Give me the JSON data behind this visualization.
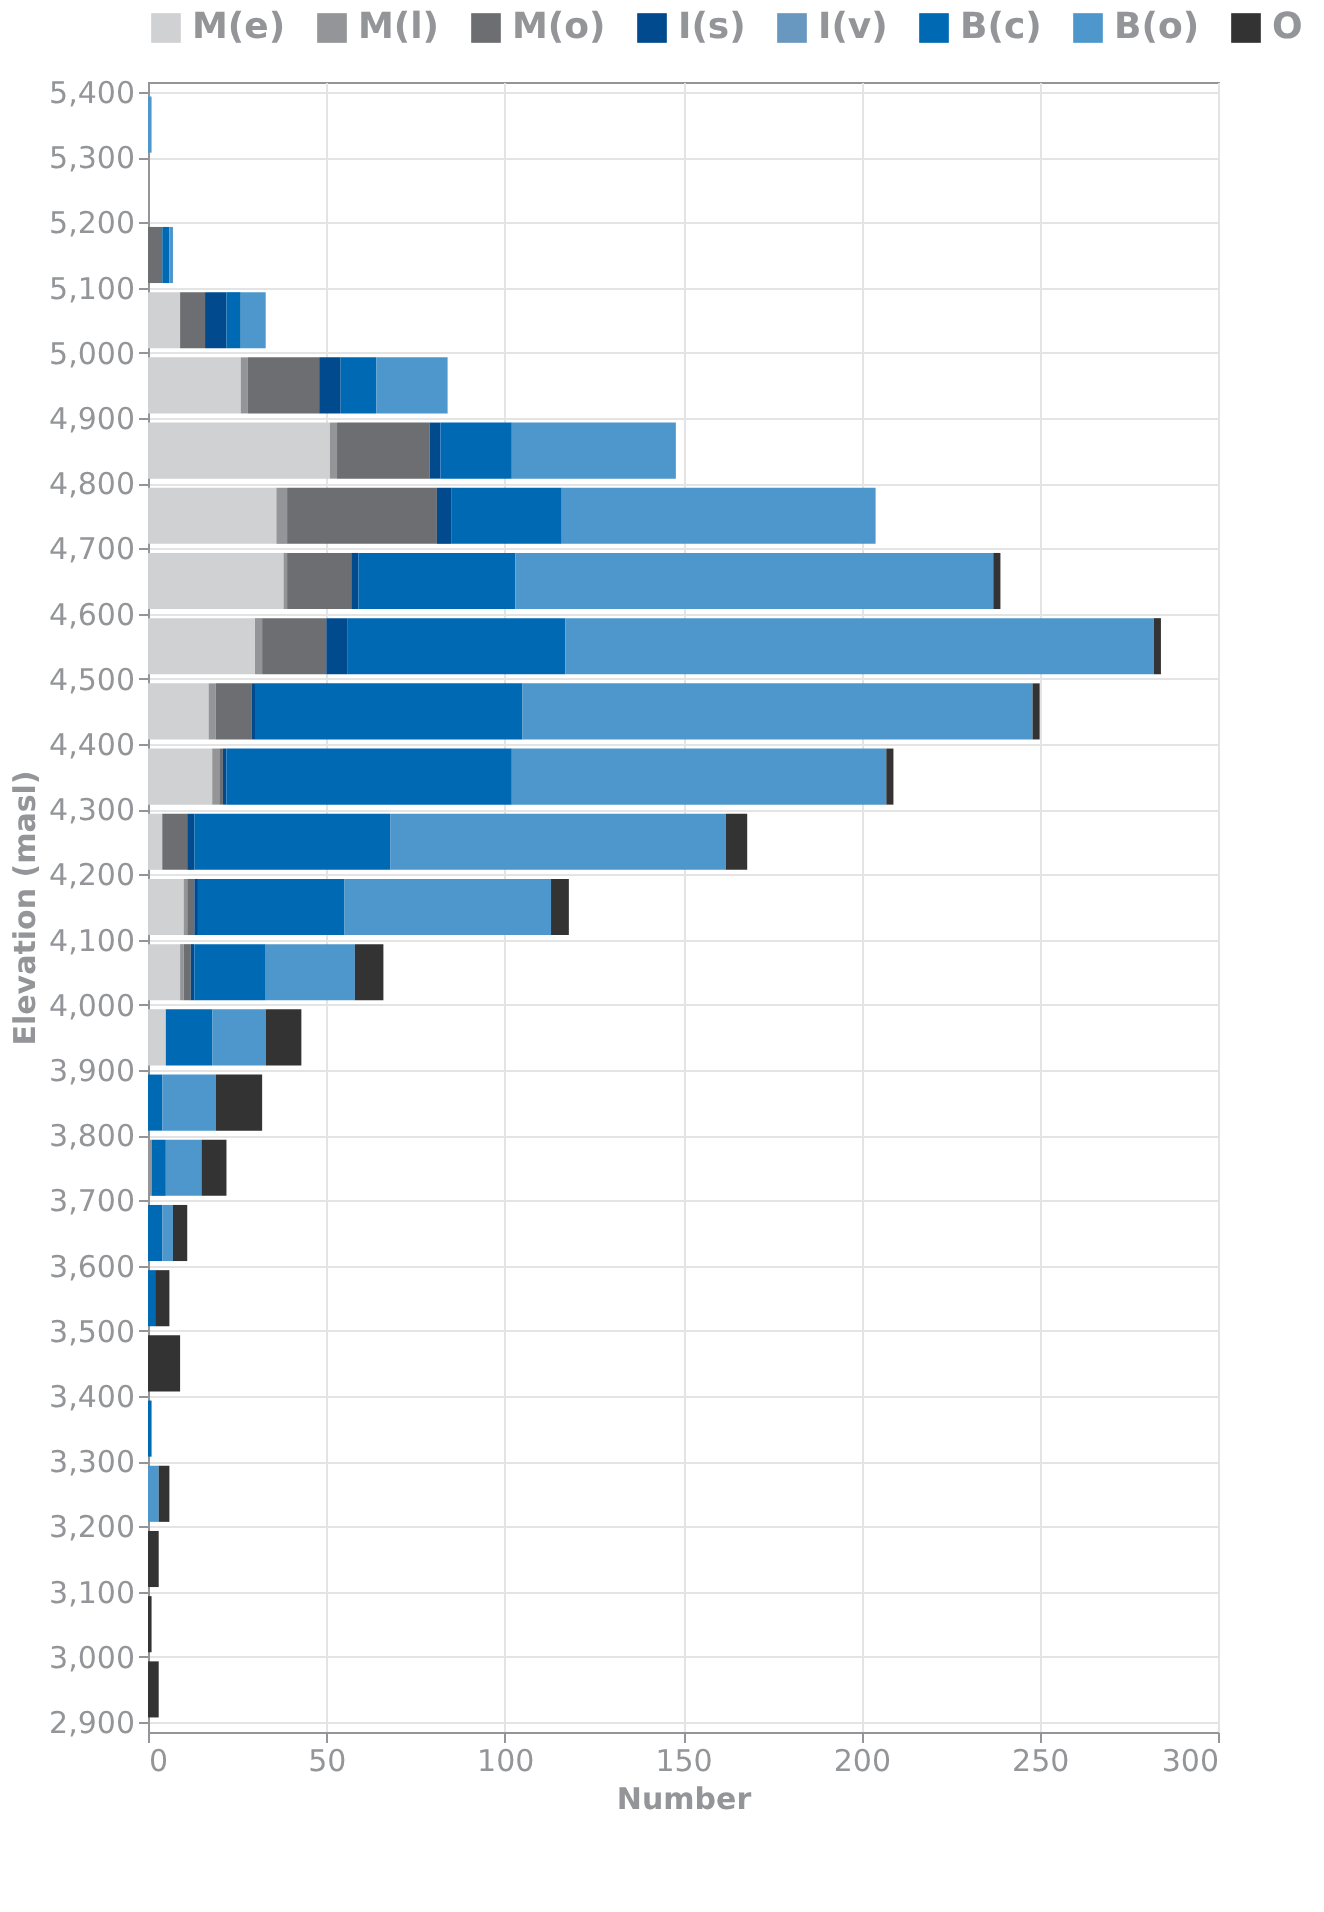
{
  "chart_data": {
    "type": "bar",
    "orientation": "horizontal",
    "stacked": true,
    "xlabel": "Number",
    "ylabel": "Elevation (masl)",
    "x": [
      2950,
      3050,
      3150,
      3250,
      3350,
      3450,
      3550,
      3650,
      3750,
      3850,
      3950,
      4050,
      4150,
      4250,
      4350,
      4450,
      4550,
      4650,
      4750,
      4850,
      4950,
      5050,
      5150,
      5250,
      5350
    ],
    "series": [
      {
        "name": "M(e)",
        "color": "#d0d1d3",
        "values": [
          0,
          0,
          0,
          0,
          0,
          0,
          0,
          0,
          0,
          0,
          5,
          9,
          10,
          4,
          18,
          17,
          30,
          38,
          36,
          51,
          26,
          9,
          0,
          0,
          0
        ]
      },
      {
        "name": "M(l)",
        "color": "#939598",
        "values": [
          0,
          0,
          0,
          0,
          0,
          0,
          0,
          0,
          1,
          0,
          0,
          1,
          1,
          0,
          2,
          2,
          2,
          1,
          3,
          2,
          2,
          0,
          0,
          0,
          0
        ]
      },
      {
        "name": "M(o)",
        "color": "#6d6e71",
        "values": [
          0,
          0,
          0,
          0,
          0,
          0,
          0,
          0,
          0,
          0,
          0,
          2,
          2,
          7,
          1,
          10,
          18,
          18,
          42,
          26,
          20,
          7,
          4,
          0,
          0
        ]
      },
      {
        "name": "I(s)",
        "color": "#004a8d",
        "values": [
          0,
          0,
          0,
          0,
          0,
          0,
          0,
          0,
          0,
          0,
          0,
          1,
          1,
          2,
          1,
          1,
          6,
          2,
          4,
          3,
          6,
          6,
          0,
          0,
          0
        ]
      },
      {
        "name": "I(v)",
        "color": "#6897c0",
        "values": [
          0,
          0,
          0,
          0,
          0,
          0,
          0,
          0,
          0,
          0,
          0,
          0,
          0,
          0,
          0,
          0,
          0,
          0,
          0,
          0,
          0,
          0,
          0,
          0,
          0
        ]
      },
      {
        "name": "B(c)",
        "color": "#0069b4",
        "values": [
          0,
          0,
          0,
          0,
          1,
          0,
          2,
          4,
          4,
          4,
          13,
          20,
          41,
          55,
          80,
          75,
          61,
          44,
          31,
          20,
          10,
          4,
          2,
          0,
          0
        ]
      },
      {
        "name": "B(o)",
        "color": "#4e97cc",
        "values": [
          0,
          0,
          0,
          3,
          0,
          0,
          0,
          3,
          10,
          15,
          15,
          25,
          58,
          94,
          105,
          143,
          165,
          134,
          88,
          46,
          20,
          7,
          1,
          0,
          1
        ]
      },
      {
        "name": "O",
        "color": "#333333",
        "values": [
          3,
          1,
          3,
          3,
          0,
          9,
          4,
          4,
          7,
          13,
          10,
          8,
          5,
          6,
          2,
          2,
          2,
          2,
          0,
          0,
          0,
          0,
          0,
          0,
          0
        ]
      }
    ],
    "xlim": [
      0,
      300
    ],
    "xticks": [
      0,
      50,
      100,
      150,
      200,
      250,
      300
    ],
    "ylim": [
      2900,
      5400
    ],
    "yticks": [
      {
        "value": 2900,
        "label": "2,900"
      },
      {
        "value": 3000,
        "label": "3,000"
      },
      {
        "value": 3100,
        "label": "3,100"
      },
      {
        "value": 3200,
        "label": "3,200"
      },
      {
        "value": 3300,
        "label": "3,300"
      },
      {
        "value": 3400,
        "label": "3,400"
      },
      {
        "value": 3500,
        "label": "3,500"
      },
      {
        "value": 3600,
        "label": "3,600"
      },
      {
        "value": 3700,
        "label": "3,700"
      },
      {
        "value": 3800,
        "label": "3,800"
      },
      {
        "value": 3900,
        "label": "3,900"
      },
      {
        "value": 4000,
        "label": "4,000"
      },
      {
        "value": 4100,
        "label": "4,100"
      },
      {
        "value": 4200,
        "label": "4,200"
      },
      {
        "value": 4300,
        "label": "4,300"
      },
      {
        "value": 4400,
        "label": "4,400"
      },
      {
        "value": 4500,
        "label": "4,500"
      },
      {
        "value": 4600,
        "label": "4,600"
      },
      {
        "value": 4700,
        "label": "4,700"
      },
      {
        "value": 4800,
        "label": "4,800"
      },
      {
        "value": 4900,
        "label": "4,900"
      },
      {
        "value": 5000,
        "label": "5,000"
      },
      {
        "value": 5100,
        "label": "5,100"
      },
      {
        "value": 5200,
        "label": "5,200"
      },
      {
        "value": 5300,
        "label": "5,300"
      },
      {
        "value": 5400,
        "label": "5,400"
      }
    ],
    "grid": true,
    "legend": "top"
  }
}
